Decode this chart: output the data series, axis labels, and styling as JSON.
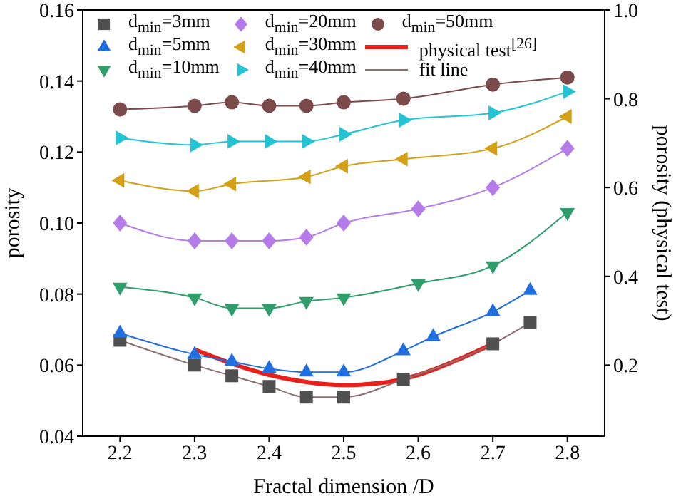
{
  "chart_data": {
    "type": "scatter",
    "xlabel": "Fractal dimension /D",
    "ylabel": "porosity",
    "y2label": "porosity (physical test)",
    "xlim": [
      2.15,
      2.85
    ],
    "xticks": [
      2.2,
      2.3,
      2.4,
      2.5,
      2.6,
      2.7,
      2.8
    ],
    "ylim": [
      0.04,
      0.16
    ],
    "yticks": [
      {
        "value": 0.04,
        "label": "0.04"
      },
      {
        "value": 0.06,
        "label": "0.06"
      },
      {
        "value": 0.08,
        "label": "0.08"
      },
      {
        "value": 0.1,
        "label": "0.10"
      },
      {
        "value": 0.12,
        "label": "0.12"
      },
      {
        "value": 0.14,
        "label": "0.14"
      },
      {
        "value": 0.16,
        "label": "0.16"
      }
    ],
    "y2lim": [
      0.04,
      1.0
    ],
    "y2ticks": [
      {
        "value": 0.2,
        "label": "0.2"
      },
      {
        "value": 0.4,
        "label": "0.4"
      },
      {
        "value": 0.6,
        "label": "0.6"
      },
      {
        "value": 0.8,
        "label": "0.8"
      },
      {
        "value": 1.0,
        "label": "1.0"
      }
    ],
    "grid": false,
    "legend": "top",
    "line_style": "solid",
    "series": [
      {
        "name": "d$_{min}$=3mm",
        "marker": "square",
        "color": "#505050",
        "x": [
          2.2,
          2.3,
          2.35,
          2.4,
          2.45,
          2.5,
          2.58,
          2.7,
          2.75
        ],
        "values": [
          0.067,
          0.06,
          0.057,
          0.054,
          0.051,
          0.051,
          0.056,
          0.066,
          0.072
        ]
      },
      {
        "name": "d$_{min}$=5mm",
        "marker": "triangle",
        "color": "#1f6fe0",
        "x": [
          2.2,
          2.3,
          2.35,
          2.4,
          2.45,
          2.5,
          2.58,
          2.62,
          2.7,
          2.75
        ],
        "values": [
          0.069,
          0.063,
          0.061,
          0.059,
          0.058,
          0.058,
          0.064,
          0.068,
          0.075,
          0.081
        ]
      },
      {
        "name": "d$_{min}$=10mm",
        "marker": "triangle-down",
        "color": "#2e9e6a",
        "x": [
          2.2,
          2.3,
          2.35,
          2.4,
          2.45,
          2.5,
          2.6,
          2.7,
          2.8
        ],
        "values": [
          0.082,
          0.079,
          0.076,
          0.076,
          0.078,
          0.079,
          0.083,
          0.088,
          0.103
        ]
      },
      {
        "name": "d$_{min}$=20mm",
        "marker": "diamond",
        "color": "#b57be8",
        "x": [
          2.2,
          2.3,
          2.35,
          2.4,
          2.45,
          2.5,
          2.6,
          2.7,
          2.8
        ],
        "values": [
          0.1,
          0.095,
          0.095,
          0.095,
          0.096,
          0.1,
          0.104,
          0.11,
          0.121
        ]
      },
      {
        "name": "d$_{min}$=30mm",
        "marker": "triangle-left",
        "color": "#d4a017",
        "x": [
          2.2,
          2.3,
          2.35,
          2.45,
          2.5,
          2.58,
          2.7,
          2.8
        ],
        "values": [
          0.112,
          0.109,
          0.111,
          0.113,
          0.116,
          0.118,
          0.121,
          0.13
        ]
      },
      {
        "name": "d$_{min}$=40mm",
        "marker": "triangle-right",
        "color": "#22c4d4",
        "x": [
          2.2,
          2.3,
          2.35,
          2.4,
          2.45,
          2.5,
          2.58,
          2.7,
          2.8
        ],
        "values": [
          0.124,
          0.122,
          0.123,
          0.123,
          0.123,
          0.125,
          0.129,
          0.131,
          0.137
        ]
      },
      {
        "name": "d$_{min}$=50mm",
        "marker": "circle",
        "color": "#7b4a4a",
        "x": [
          2.2,
          2.3,
          2.35,
          2.4,
          2.45,
          2.5,
          2.58,
          2.7,
          2.8
        ],
        "values": [
          0.132,
          0.133,
          0.134,
          0.133,
          0.133,
          0.134,
          0.135,
          0.139,
          0.141
        ]
      },
      {
        "name": "physical test$^{[26]}$",
        "type": "line",
        "axis": "y2",
        "color": "#e8201c",
        "x": [
          2.3,
          2.4,
          2.45,
          2.5,
          2.55,
          2.6,
          2.65,
          2.7
        ],
        "values": [
          0.235,
          0.178,
          0.162,
          0.155,
          0.16,
          0.178,
          0.21,
          0.248
        ]
      },
      {
        "name": "fit line",
        "type": "line",
        "color": "#8c6f6f",
        "x": [
          2.2,
          2.3,
          2.35,
          2.4,
          2.45,
          2.5,
          2.58,
          2.7,
          2.75
        ],
        "values": [
          0.067,
          0.06,
          0.057,
          0.054,
          0.051,
          0.051,
          0.056,
          0.066,
          0.072
        ]
      },
      {
        "type": "line",
        "color": "#1f6fe0",
        "x": [
          2.2,
          2.3,
          2.35,
          2.4,
          2.45,
          2.5,
          2.58,
          2.62,
          2.7,
          2.75
        ],
        "values": [
          0.069,
          0.063,
          0.061,
          0.059,
          0.058,
          0.058,
          0.064,
          0.068,
          0.075,
          0.081
        ]
      },
      {
        "type": "line",
        "color": "#2e9e6a",
        "x": [
          2.2,
          2.3,
          2.35,
          2.4,
          2.45,
          2.5,
          2.6,
          2.7,
          2.8
        ],
        "values": [
          0.082,
          0.079,
          0.076,
          0.076,
          0.078,
          0.079,
          0.083,
          0.088,
          0.103
        ]
      },
      {
        "type": "line",
        "color": "#b57be8",
        "x": [
          2.2,
          2.3,
          2.35,
          2.4,
          2.45,
          2.5,
          2.6,
          2.7,
          2.8
        ],
        "values": [
          0.1,
          0.095,
          0.095,
          0.095,
          0.096,
          0.1,
          0.104,
          0.11,
          0.121
        ]
      },
      {
        "type": "line",
        "color": "#d4a017",
        "x": [
          2.2,
          2.3,
          2.35,
          2.45,
          2.5,
          2.58,
          2.7,
          2.8
        ],
        "values": [
          0.112,
          0.109,
          0.111,
          0.113,
          0.116,
          0.118,
          0.121,
          0.13
        ]
      },
      {
        "type": "line",
        "color": "#22c4d4",
        "x": [
          2.2,
          2.3,
          2.35,
          2.4,
          2.45,
          2.5,
          2.58,
          2.7,
          2.8
        ],
        "values": [
          0.124,
          0.122,
          0.123,
          0.123,
          0.123,
          0.125,
          0.129,
          0.131,
          0.137
        ]
      },
      {
        "type": "line",
        "color": "#7b4a4a",
        "x": [
          2.2,
          2.3,
          2.35,
          2.4,
          2.45,
          2.5,
          2.58,
          2.7,
          2.8
        ],
        "values": [
          0.132,
          0.133,
          0.134,
          0.133,
          0.133,
          0.134,
          0.135,
          0.139,
          0.141
        ]
      }
    ]
  }
}
